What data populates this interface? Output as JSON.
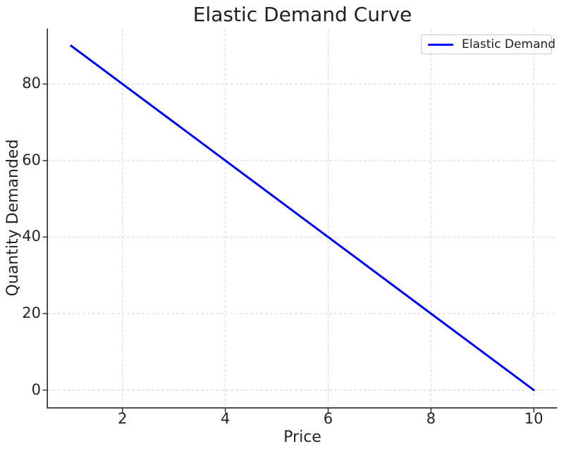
{
  "chart_data": {
    "type": "line",
    "title": "Elastic Demand Curve",
    "xlabel": "Price",
    "ylabel": "Quantity Demanded",
    "xlim": [
      0.55,
      10.45
    ],
    "ylim": [
      -4.5,
      94.5
    ],
    "xticks": [
      2,
      4,
      6,
      8,
      10
    ],
    "yticks": [
      0,
      20,
      40,
      60,
      80
    ],
    "grid": true,
    "grid_style": "dashed",
    "legend": {
      "position": "upper right",
      "entries": [
        "Elastic Demand"
      ]
    },
    "series": [
      {
        "name": "Elastic Demand",
        "color": "#0000ff",
        "line_width": 3,
        "x": [
          1,
          2,
          3,
          4,
          5,
          6,
          7,
          8,
          9,
          10
        ],
        "y": [
          90,
          80,
          70,
          60,
          50,
          40,
          30,
          20,
          10,
          0
        ]
      }
    ]
  }
}
